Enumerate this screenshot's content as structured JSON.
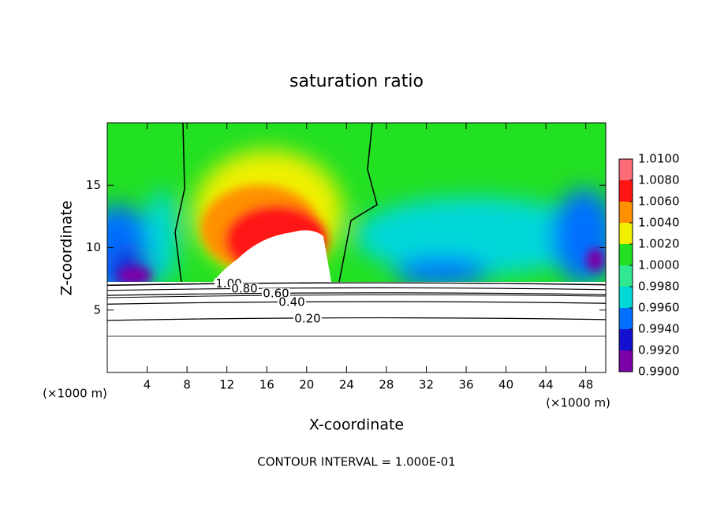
{
  "chart_data": {
    "type": "contour",
    "title": "saturation ratio",
    "x_label": "X-coordinate",
    "y_label": "Z-coordinate",
    "x_unit_left": "(×1000 m)",
    "x_unit_right": "(×1000 m)",
    "footer": "CONTOUR INTERVAL = 1.000E-01",
    "xlim": [
      0,
      50
    ],
    "xticks": [
      4,
      8,
      12,
      16,
      20,
      24,
      28,
      32,
      36,
      40,
      44,
      48
    ],
    "ylim": [
      0,
      20
    ],
    "yticks": [
      5,
      10,
      15
    ],
    "contours": [
      {
        "value": 1.0,
        "label": "1.00",
        "z": 7.1
      },
      {
        "value": 0.8,
        "label": "0.80",
        "z": 6.7
      },
      {
        "value": 0.6,
        "label": "0.60",
        "z": 6.3
      },
      {
        "value": 0.4,
        "label": "0.40",
        "z": 5.6
      },
      {
        "value": 0.2,
        "label": "0.20",
        "z": 4.3
      }
    ],
    "colorbar": {
      "ticks": [
        {
          "value": 0.99,
          "label": "0.9900"
        },
        {
          "value": 0.992,
          "label": "0.9920"
        },
        {
          "value": 0.994,
          "label": "0.9940"
        },
        {
          "value": 0.996,
          "label": "0.9960"
        },
        {
          "value": 0.998,
          "label": "0.9980"
        },
        {
          "value": 1.0,
          "label": "1.0000"
        },
        {
          "value": 1.002,
          "label": "1.0020"
        },
        {
          "value": 1.004,
          "label": "1.0040"
        },
        {
          "value": 1.006,
          "label": "1.0060"
        },
        {
          "value": 1.008,
          "label": "1.0080"
        },
        {
          "value": 1.01,
          "label": "1.0100"
        }
      ],
      "colors": [
        "#7a00a8",
        "#1410d0",
        "#0070ff",
        "#00d8d8",
        "#30e890",
        "#22e022",
        "#f0f000",
        "#ff9000",
        "#ff1414",
        "#ff6c78"
      ]
    }
  }
}
